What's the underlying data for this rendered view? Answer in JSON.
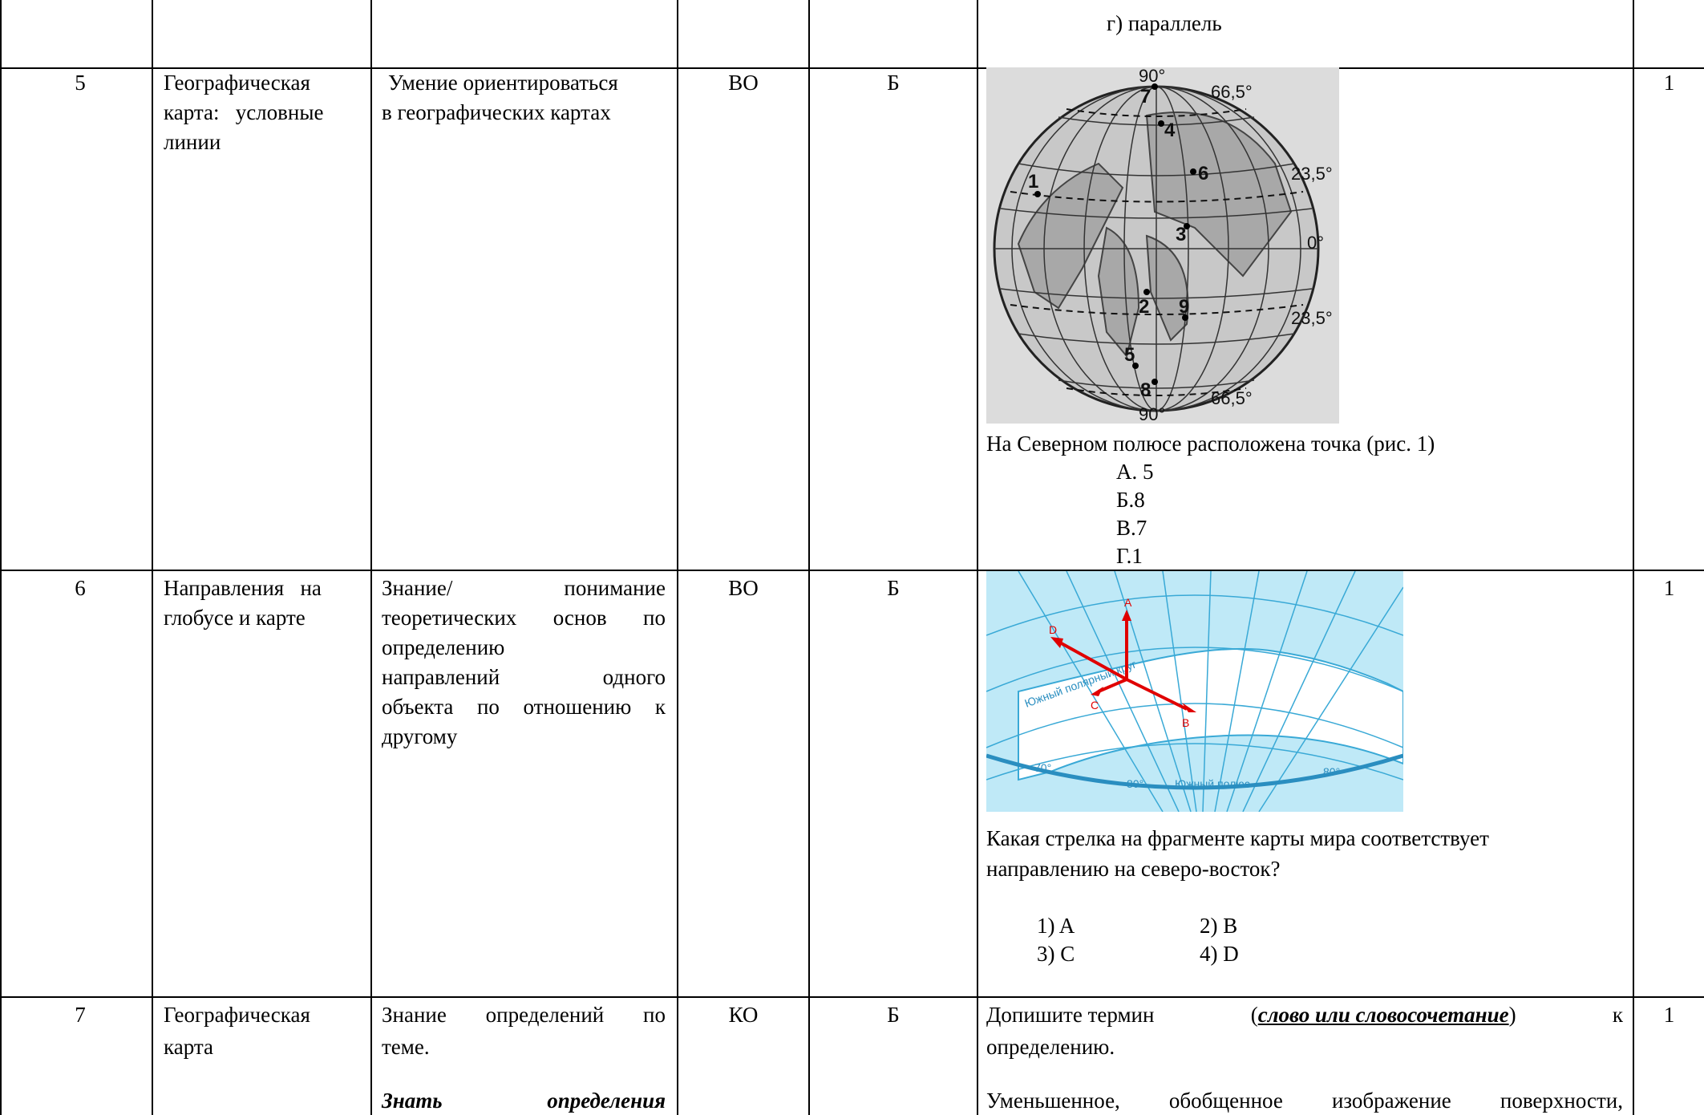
{
  "colors": {
    "map_bg": "#dcdcdc",
    "ocean": "#bfe9f7",
    "arrow": "#e00000",
    "map_line": "#39a9d6"
  },
  "row_prev": {
    "answer_g": "г) параллель"
  },
  "rows": [
    {
      "num": "5",
      "topic_lines": [
        "Географическая",
        "карта:   условные",
        "линии"
      ],
      "skill_lines": [
        "Умение ориентироваться",
        "в географических картах"
      ],
      "type": "ВО",
      "level": "Б",
      "figure": {
        "degree_labels": [
          "90°",
          "66,5°",
          "23,5°",
          "0°",
          "23,5°",
          "66,5°",
          "90°"
        ],
        "point_labels": [
          "1",
          "2",
          "3",
          "4",
          "5",
          "6",
          "7",
          "8",
          "9"
        ]
      },
      "question": "На Северном полюсе расположена точка (рис. 1)",
      "options": [
        "А. 5",
        "Б.8",
        "В.7",
        "Г.1"
      ],
      "score": "1"
    },
    {
      "num": "6",
      "topic_lines": [
        "Направления   на",
        "глобусе и карте"
      ],
      "skill_lines": [
        "Знание/ понимание",
        "теоретических основ по",
        "определению",
        "направлений одного",
        "объекта по отношению к",
        "другому"
      ],
      "type": "ВО",
      "level": "Б",
      "figure": {
        "arrow_labels": [
          "A",
          "B",
          "C",
          "D"
        ],
        "map_labels": [
          "Южный полярный круг",
          "Южный полюс",
          "70°",
          "80°",
          "80°"
        ]
      },
      "question_lines": [
        "Какая стрелка на фрагменте карты мира соответствует",
        "направлению на северо-восток?"
      ],
      "options": [
        "1) A",
        "2) B",
        "3) C",
        "4) D"
      ],
      "score": "1"
    },
    {
      "num": "7",
      "topic_lines": [
        "Географическая",
        "карта"
      ],
      "skill_lines": [
        "Знание определений по",
        "теме.",
        "Знать определения"
      ],
      "type": "КО",
      "level": "Б",
      "question_parts": {
        "pre": "Допишите термин",
        "emph": "слово или словосочетание",
        "post": "к",
        "line2": "определению.",
        "line3": "Уменьшенное, обобщенное изображение поверхности,"
      },
      "score": "1"
    }
  ]
}
